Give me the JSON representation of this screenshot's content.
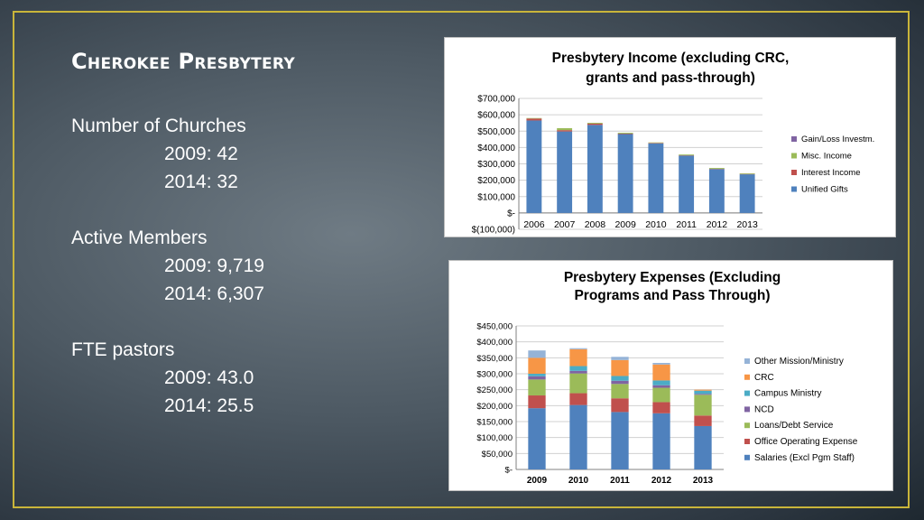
{
  "slide": {
    "title": "Cherokee Presbytery",
    "stats": [
      {
        "label": "Number of Churches",
        "rows": [
          "2009:  42",
          "2014:  32"
        ]
      },
      {
        "label": "Active Members",
        "rows": [
          "2009: 9,719",
          "2014: 6,307"
        ]
      },
      {
        "label": "FTE pastors",
        "rows": [
          "2009: 43.0",
          "2014: 25.5"
        ]
      }
    ]
  },
  "chart_data": [
    {
      "type": "bar",
      "stacked": true,
      "title_lines": [
        "Presbytery Income (excluding CRC,",
        "grants and pass-through)"
      ],
      "categories": [
        "2006",
        "2007",
        "2008",
        "2009",
        "2010",
        "2011",
        "2012",
        "2013"
      ],
      "ylim": [
        -100000,
        700000
      ],
      "ytick_step": 100000,
      "ytick_labels": [
        "$(100,000)",
        "$-",
        "$100,000",
        "$200,000",
        "$300,000",
        "$400,000",
        "$500,000",
        "$600,000",
        "$700,000"
      ],
      "grid": true,
      "legend_position": "right",
      "series": [
        {
          "name": "Unified Gifts",
          "color": "#4f81bd",
          "values": [
            565000,
            498000,
            538000,
            482000,
            425000,
            350000,
            268000,
            236000
          ]
        },
        {
          "name": "Interest Income",
          "color": "#c0504d",
          "values": [
            12000,
            8000,
            8000,
            3000,
            3000,
            2000,
            2000,
            2000
          ]
        },
        {
          "name": "Misc. Income",
          "color": "#9bbb59",
          "values": [
            3000,
            12000,
            5000,
            5000,
            3000,
            5000,
            5000,
            4000
          ]
        },
        {
          "name": "Gain/Loss Investm.",
          "color": "#8064a2",
          "values": [
            0,
            0,
            0,
            0,
            0,
            0,
            0,
            0
          ]
        }
      ]
    },
    {
      "type": "bar",
      "stacked": true,
      "title_lines": [
        "Presbytery Expenses (Excluding",
        "Programs and Pass Through)"
      ],
      "categories": [
        "2009",
        "2010",
        "2011",
        "2012",
        "2013"
      ],
      "ylim": [
        0,
        450000
      ],
      "ytick_step": 50000,
      "ytick_labels": [
        "$-",
        "$50,000",
        "$100,000",
        "$150,000",
        "$200,000",
        "$250,000",
        "$300,000",
        "$350,000",
        "$400,000",
        "$450,000"
      ],
      "grid": true,
      "legend_position": "right",
      "series": [
        {
          "name": "Salaries (Excl  Pgm Staff)",
          "color": "#4f81bd",
          "values": [
            192000,
            202000,
            180000,
            176000,
            136000
          ]
        },
        {
          "name": "Office Operating Expense",
          "color": "#c0504d",
          "values": [
            40000,
            37000,
            43000,
            35000,
            33000
          ]
        },
        {
          "name": "Loans/Debt Service",
          "color": "#9bbb59",
          "values": [
            50000,
            62000,
            45000,
            45000,
            65000
          ]
        },
        {
          "name": "NCD",
          "color": "#8064a2",
          "values": [
            10000,
            8000,
            10000,
            8000,
            3000
          ]
        },
        {
          "name": "Campus Ministry",
          "color": "#4bacc6",
          "values": [
            8000,
            15000,
            15000,
            15000,
            10000
          ]
        },
        {
          "name": "CRC",
          "color": "#f79646",
          "values": [
            50000,
            53000,
            50000,
            50000,
            3000
          ]
        },
        {
          "name": "Other Mission/Ministry",
          "color": "#95b3d7",
          "values": [
            23000,
            3000,
            10000,
            5000,
            0
          ]
        }
      ]
    }
  ]
}
